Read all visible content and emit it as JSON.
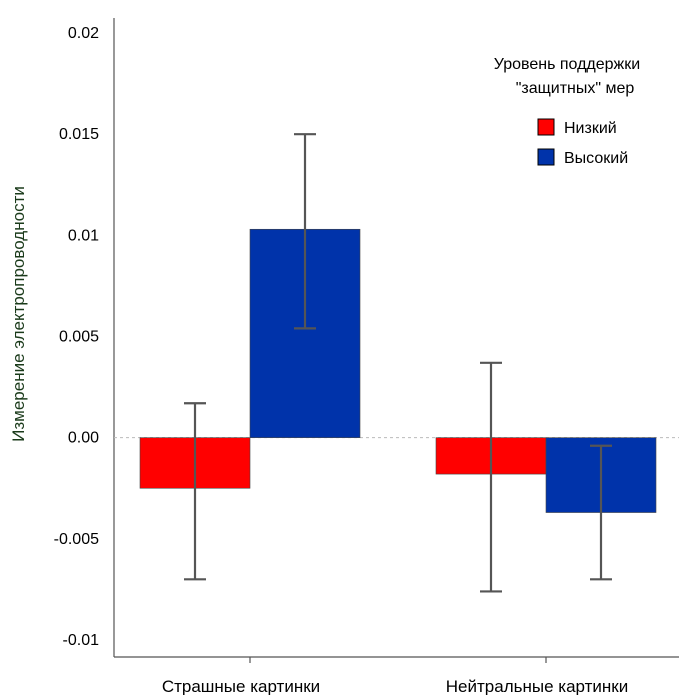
{
  "chart_data": {
    "type": "bar",
    "categories": [
      "Страшные картинки",
      "Нейтральные картинки"
    ],
    "series": [
      {
        "name": "Низкий",
        "color": "#ff0000",
        "values": [
          -0.0025,
          -0.0018
        ],
        "err_low": [
          -0.007,
          -0.0076
        ],
        "err_high": [
          0.0017,
          0.0037
        ]
      },
      {
        "name": "Высокий",
        "color": "#0033aa",
        "values": [
          0.0103,
          -0.0037
        ],
        "err_low": [
          0.0054,
          -0.007
        ],
        "err_high": [
          0.015,
          -0.0004
        ]
      }
    ],
    "ylabel": "Измерение электропроводности",
    "xlabel": "",
    "ylim": [
      -0.01,
      0.02
    ],
    "yticks": [
      "0.02",
      "0.015",
      "0.01",
      "0.005",
      "0.00",
      "-0.005",
      "-0.01"
    ],
    "ytick_values": [
      0.02,
      0.015,
      0.01,
      0.005,
      0.0,
      -0.005,
      -0.01
    ],
    "legend": {
      "title_line1": "Уровень поддержки",
      "title_line2": "\"защитных\" мер",
      "placement": "top-right"
    }
  }
}
